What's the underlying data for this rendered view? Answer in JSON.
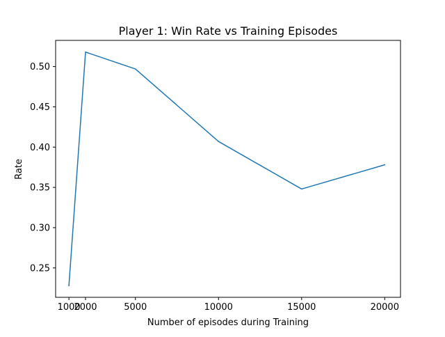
{
  "chart_data": {
    "type": "line",
    "title": "Player 1: Win Rate vs Training Episodes",
    "xlabel": "Number of episodes during Training",
    "ylabel": "Rate",
    "x": [
      1000,
      2000,
      5000,
      10000,
      15000,
      20000
    ],
    "series": [
      {
        "values": [
          0.228,
          0.518,
          0.497,
          0.407,
          0.348,
          0.378
        ],
        "color": "#1f77b4"
      }
    ],
    "xlim": [
      200,
      20950
    ],
    "ylim": [
      0.2135,
      0.5325
    ],
    "xticks": [
      1000,
      2000,
      5000,
      10000,
      15000,
      20000
    ],
    "xtick_labels": [
      "1000",
      "2000",
      "5000",
      "10000",
      "15000",
      "20000"
    ],
    "yticks": [
      0.25,
      0.3,
      0.35,
      0.4,
      0.45,
      0.5
    ],
    "ytick_labels": [
      "0.25",
      "0.30",
      "0.35",
      "0.40",
      "0.45",
      "0.50"
    ],
    "grid": false,
    "legend": "none"
  }
}
